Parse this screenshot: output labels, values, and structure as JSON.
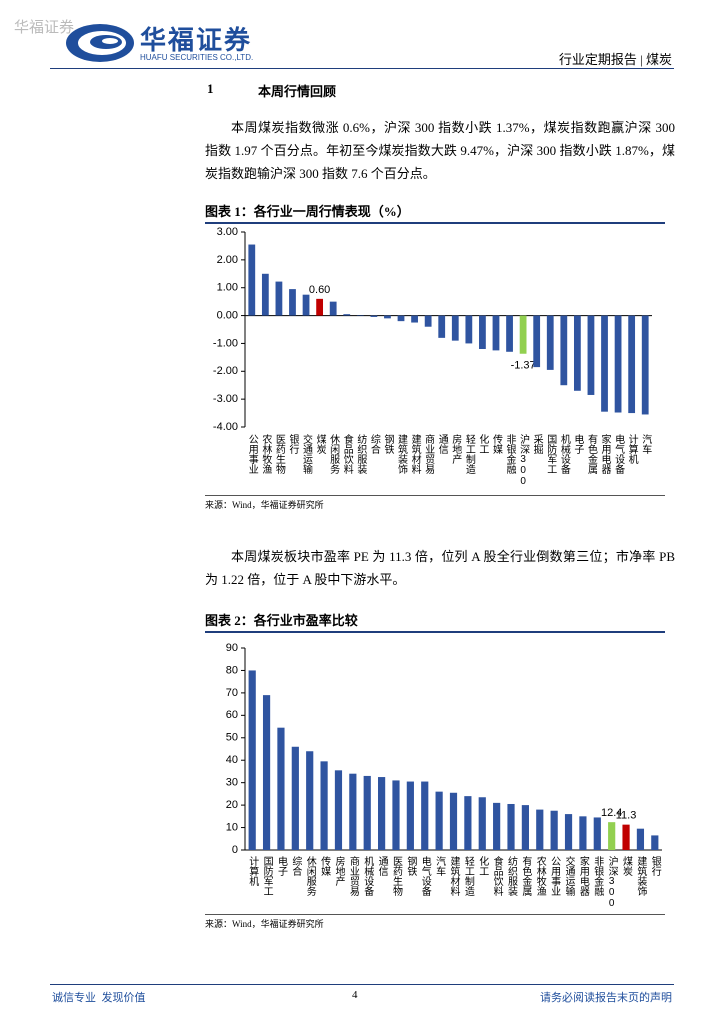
{
  "header": {
    "watermark": "华福证券",
    "logo_cn": "华福证券",
    "logo_en": "HUAFU SECURITIES CO.,LTD.",
    "report_type": "行业定期报告 | 煤炭"
  },
  "section": {
    "number": "1",
    "title": "本周行情回顾"
  },
  "paragraphs": [
    "本周煤炭指数微涨 0.6%，沪深 300 指数小跌 1.37%，煤炭指数跑赢沪深 300 指数 1.97 个百分点。年初至今煤炭指数大跌 9.47%，沪深 300 指数小跌 1.87%，煤炭指数跑输沪深 300 指数 7.6 个百分点。",
    "本周煤炭板块市盈率 PE 为 11.3 倍，位列 A 股全行业倒数第三位；市净率 PB 为 1.22 倍，位于 A 股中下游水平。"
  ],
  "chart_data": [
    {
      "type": "bar",
      "title": "图表 1：各行业一周行情表现（%）",
      "source": "来源：Wind，华福证券研究所",
      "categories": [
        "公用事业",
        "农林牧渔",
        "医药生物",
        "银行",
        "交通运输",
        "煤炭",
        "休闲服务",
        "食品饮料",
        "纺织服装",
        "综合",
        "钢铁",
        "建筑装饰",
        "建筑材料",
        "商业贸易",
        "通信",
        "房地产",
        "轻工制造",
        "化工",
        "传媒",
        "非银金融",
        "沪深300",
        "采掘",
        "国防军工",
        "机械设备",
        "电子",
        "有色金属",
        "家用电器",
        "电气设备",
        "计算机",
        "汽车"
      ],
      "values": [
        2.55,
        1.5,
        1.22,
        0.95,
        0.75,
        0.6,
        0.5,
        0.05,
        0.02,
        -0.05,
        -0.1,
        -0.2,
        -0.25,
        -0.4,
        -0.8,
        -0.9,
        -1.0,
        -1.2,
        -1.25,
        -1.3,
        -1.37,
        -1.85,
        -1.95,
        -2.5,
        -2.7,
        -2.85,
        -3.45,
        -3.48,
        -3.5,
        -3.55
      ],
      "value_labels": [
        null,
        null,
        null,
        null,
        null,
        "0.60",
        null,
        null,
        null,
        null,
        null,
        null,
        null,
        null,
        null,
        null,
        null,
        null,
        null,
        null,
        "-1.37",
        null,
        null,
        null,
        null,
        null,
        null,
        null,
        null,
        null
      ],
      "colors": [
        "#2f54a0",
        "#2f54a0",
        "#2f54a0",
        "#2f54a0",
        "#2f54a0",
        "#c00000",
        "#2f54a0",
        "#2f54a0",
        "#2f54a0",
        "#2f54a0",
        "#2f54a0",
        "#2f54a0",
        "#2f54a0",
        "#2f54a0",
        "#2f54a0",
        "#2f54a0",
        "#2f54a0",
        "#2f54a0",
        "#2f54a0",
        "#2f54a0",
        "#92d050",
        "#2f54a0",
        "#2f54a0",
        "#2f54a0",
        "#2f54a0",
        "#2f54a0",
        "#2f54a0",
        "#2f54a0",
        "#2f54a0",
        "#2f54a0"
      ],
      "ylim": [
        -4,
        3
      ],
      "yticks": [
        {
          "value": 3,
          "label": "3.00"
        },
        {
          "value": 2,
          "label": "2.00"
        },
        {
          "value": 1,
          "label": "1.00"
        },
        {
          "value": 0,
          "label": "0.00"
        },
        {
          "value": -1,
          "label": "-1.00"
        },
        {
          "value": -2,
          "label": "-2.00"
        },
        {
          "value": -3,
          "label": "-3.00"
        },
        {
          "value": -4,
          "label": "-4.00"
        }
      ]
    },
    {
      "type": "bar",
      "title": "图表 2：各行业市盈率比较",
      "source": "来源：Wind，华福证券研究所",
      "categories": [
        "计算机",
        "国防军工",
        "电子",
        "综合",
        "休闲服务",
        "传媒",
        "房地产",
        "商业贸易",
        "机械设备",
        "通信",
        "医药生物",
        "钢铁",
        "电气设备",
        "汽车",
        "建筑材料",
        "轻工制造",
        "化工",
        "食品饮料",
        "纺织服装",
        "有色金属",
        "农林牧渔",
        "公用事业",
        "交通运输",
        "家用电器",
        "非银金融",
        "沪深300",
        "煤炭",
        "建筑装饰",
        "银行"
      ],
      "values": [
        80,
        69,
        54.5,
        46,
        44,
        39.5,
        35.5,
        34,
        33,
        32.5,
        31,
        30.5,
        30.5,
        26,
        25.5,
        24,
        23.5,
        21,
        20.5,
        20,
        18,
        17.5,
        16,
        15,
        14.5,
        12.4,
        11.3,
        9.5,
        6.5
      ],
      "value_labels": [
        null,
        null,
        null,
        null,
        null,
        null,
        null,
        null,
        null,
        null,
        null,
        null,
        null,
        null,
        null,
        null,
        null,
        null,
        null,
        null,
        null,
        null,
        null,
        null,
        null,
        "12.4",
        "11.3",
        null,
        null
      ],
      "colors": [
        "#2f54a0",
        "#2f54a0",
        "#2f54a0",
        "#2f54a0",
        "#2f54a0",
        "#2f54a0",
        "#2f54a0",
        "#2f54a0",
        "#2f54a0",
        "#2f54a0",
        "#2f54a0",
        "#2f54a0",
        "#2f54a0",
        "#2f54a0",
        "#2f54a0",
        "#2f54a0",
        "#2f54a0",
        "#2f54a0",
        "#2f54a0",
        "#2f54a0",
        "#2f54a0",
        "#2f54a0",
        "#2f54a0",
        "#2f54a0",
        "#2f54a0",
        "#92d050",
        "#c00000",
        "#2f54a0",
        "#2f54a0"
      ],
      "ylim": [
        0,
        90
      ],
      "yticks": [
        0,
        10,
        20,
        30,
        40,
        50,
        60,
        70,
        80,
        90
      ]
    }
  ],
  "footer": {
    "left": "诚信专业  发现价值",
    "page": "4",
    "right": "请务必阅读报告末页的声明"
  }
}
